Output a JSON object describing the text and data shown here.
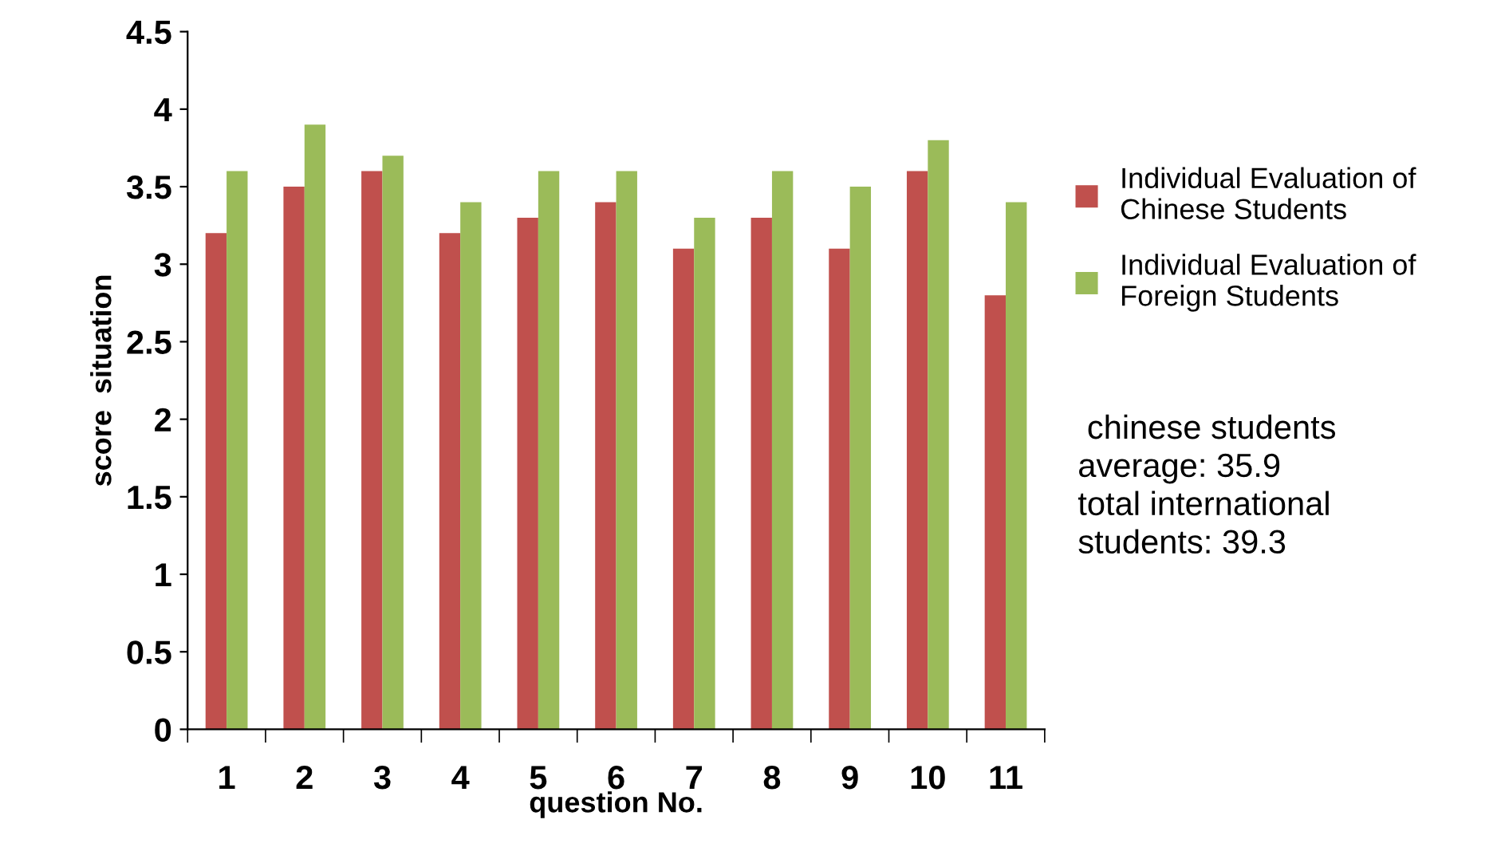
{
  "chart_data": {
    "type": "bar",
    "xlabel": "question No.",
    "ylabel": "score  situation",
    "categories": [
      "1",
      "2",
      "3",
      "4",
      "5",
      "6",
      "7",
      "8",
      "9",
      "10",
      "11"
    ],
    "series": [
      {
        "name": "Individual Evaluation of Chinese Students",
        "color": "#c0504d",
        "values": [
          3.2,
          3.5,
          3.6,
          3.2,
          3.3,
          3.4,
          3.1,
          3.3,
          3.1,
          3.6,
          2.8
        ]
      },
      {
        "name": "Individual Evaluation of Foreign Students",
        "color": "#9bbb59",
        "values": [
          3.6,
          3.9,
          3.7,
          3.4,
          3.6,
          3.6,
          3.3,
          3.6,
          3.5,
          3.8,
          3.4
        ]
      }
    ],
    "ylim": [
      0,
      4.5
    ],
    "yticks": [
      0,
      0.5,
      1,
      1.5,
      2,
      2.5,
      3,
      3.5,
      4,
      4.5
    ],
    "grid": false,
    "legend": "right",
    "annotations": [
      " chinese students\naverage: 35.9\ntotal international\nstudents: 39.3"
    ]
  }
}
